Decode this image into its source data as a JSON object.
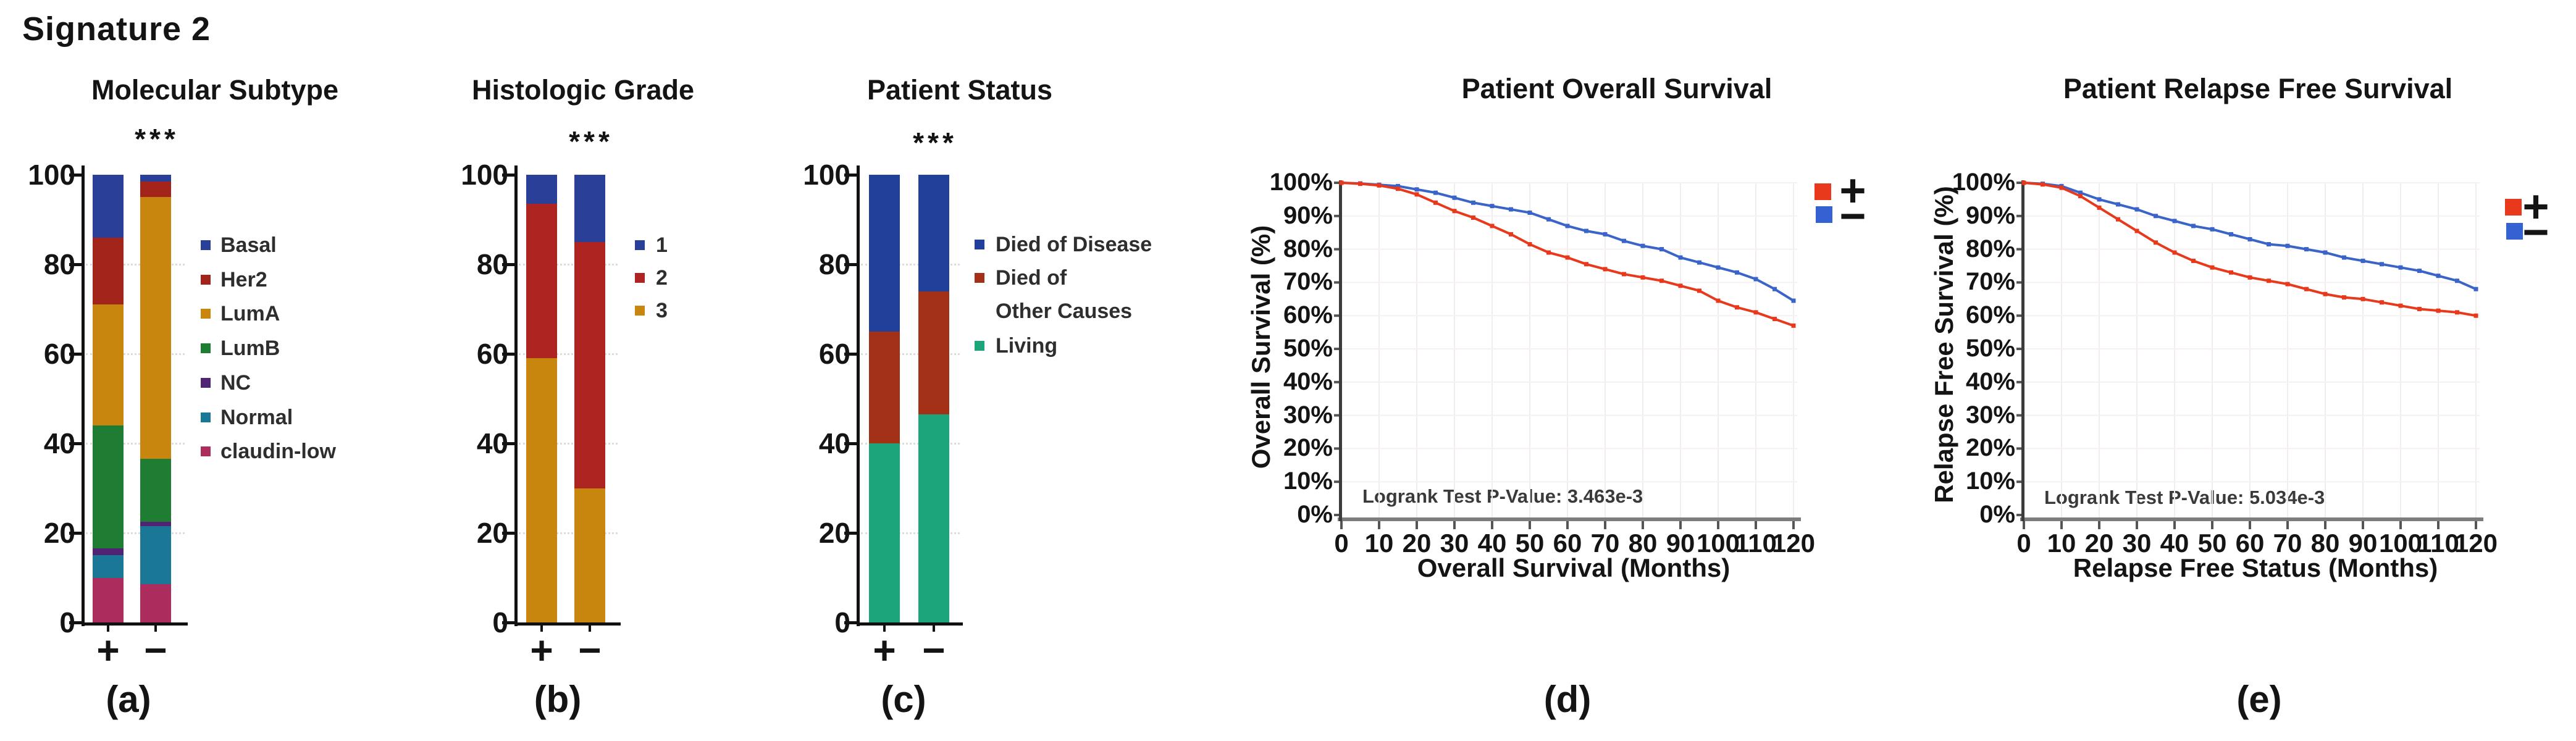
{
  "figure_title": "Signature 2",
  "chart_data": [
    {
      "id": "a",
      "type": "bar",
      "stacked": true,
      "title": "Molecular Subtype",
      "significance": "***",
      "panel_label": "(a)",
      "categories": [
        "+",
        "−"
      ],
      "ylim": [
        0,
        100
      ],
      "y_ticks": [
        100,
        80,
        60,
        40,
        20,
        0
      ],
      "series_bottom_to_top": [
        {
          "name": "claudin-low",
          "color": "#AB2C5D",
          "values": [
            10,
            8.5
          ]
        },
        {
          "name": "Normal",
          "color": "#1A7896",
          "values": [
            5,
            13
          ]
        },
        {
          "name": "NC",
          "color": "#502374",
          "values": [
            1.5,
            1
          ]
        },
        {
          "name": "LumB",
          "color": "#1E7D33",
          "values": [
            27.5,
            14
          ]
        },
        {
          "name": "LumA",
          "color": "#C8860E",
          "values": [
            27,
            58.5
          ]
        },
        {
          "name": "Her2",
          "color": "#A3241B",
          "values": [
            15,
            3.5
          ]
        },
        {
          "name": "Basal",
          "color": "#2A3F97",
          "values": [
            14,
            1.5
          ]
        }
      ],
      "legend": [
        {
          "label": "Basal",
          "color": "#2A3F97"
        },
        {
          "label": "Her2",
          "color": "#A3241B"
        },
        {
          "label": "LumA",
          "color": "#C8860E"
        },
        {
          "label": "LumB",
          "color": "#1E7D33"
        },
        {
          "label": "NC",
          "color": "#502374"
        },
        {
          "label": "Normal",
          "color": "#1A7896"
        },
        {
          "label": "claudin-low",
          "color": "#AB2C5D"
        }
      ]
    },
    {
      "id": "b",
      "type": "bar",
      "stacked": true,
      "title": "Histologic Grade",
      "significance": "***",
      "panel_label": "(b)",
      "categories": [
        "+",
        "−"
      ],
      "ylim": [
        0,
        100
      ],
      "y_ticks": [
        100,
        80,
        60,
        40,
        20,
        0
      ],
      "series_bottom_to_top": [
        {
          "name": "3",
          "color": "#C8860E",
          "values": [
            59,
            30
          ]
        },
        {
          "name": "2",
          "color": "#AE2421",
          "values": [
            34.5,
            55
          ]
        },
        {
          "name": "1",
          "color": "#2A3F97",
          "values": [
            6.5,
            15
          ]
        }
      ],
      "legend": [
        {
          "label": "1",
          "color": "#2A3F97"
        },
        {
          "label": "2",
          "color": "#AE2421"
        },
        {
          "label": "3",
          "color": "#C8860E"
        }
      ]
    },
    {
      "id": "c",
      "type": "bar",
      "stacked": true,
      "title": "Patient Status",
      "significance": "***",
      "panel_label": "(c)",
      "categories": [
        "+",
        "−"
      ],
      "ylim": [
        0,
        100
      ],
      "y_ticks": [
        100,
        80,
        60,
        40,
        20,
        0
      ],
      "series_bottom_to_top": [
        {
          "name": "Living",
          "color": "#1CA57B",
          "values": [
            40,
            46.5
          ]
        },
        {
          "name": "Died of Other Causes",
          "color": "#A23118",
          "values": [
            25,
            27.5
          ]
        },
        {
          "name": "Died of Disease",
          "color": "#21409A",
          "values": [
            35,
            26
          ]
        }
      ],
      "legend": [
        {
          "label": "Died of Disease",
          "color": "#21409A"
        },
        {
          "label": "Died of Other Causes",
          "lines": [
            "Died of",
            "Other Causes"
          ],
          "color": "#A23118"
        },
        {
          "label": "Living",
          "color": "#1CA57B"
        }
      ]
    },
    {
      "id": "d",
      "type": "line",
      "title": "Patient Overall Survival",
      "xlabel": "Overall Survival (Months)",
      "ylabel": "Overall Survival (%)",
      "annotation": "Logrank Test P-Value: 3.463e-3",
      "panel_label": "(d)",
      "xlim": [
        0,
        120
      ],
      "ylim": [
        0,
        100
      ],
      "x_ticks": [
        0,
        10,
        20,
        30,
        40,
        50,
        60,
        70,
        80,
        90,
        100,
        110,
        120
      ],
      "y_tick_labels": [
        "100%",
        "90%",
        "80%",
        "70%",
        "60%",
        "50%",
        "40%",
        "30%",
        "20%",
        "10%",
        "0%"
      ],
      "legend": [
        {
          "label": "+",
          "color": "#E8391D"
        },
        {
          "label": "−",
          "color": "#3462D2"
        }
      ],
      "series": [
        {
          "name": "+",
          "color": "#E8391D",
          "x": [
            0,
            5,
            10,
            15,
            20,
            25,
            30,
            35,
            40,
            45,
            50,
            55,
            60,
            65,
            70,
            75,
            80,
            85,
            90,
            95,
            100,
            105,
            110,
            115,
            120
          ],
          "y": [
            100,
            99.7,
            99.2,
            98.2,
            96.5,
            94,
            91.5,
            89.5,
            87,
            84.5,
            81.5,
            79,
            77.5,
            75.5,
            74,
            72.5,
            71.5,
            70.5,
            69,
            67.5,
            64.5,
            62.5,
            61,
            59,
            57
          ]
        },
        {
          "name": "−",
          "color": "#3A64C8",
          "x": [
            0,
            5,
            10,
            15,
            20,
            25,
            30,
            35,
            40,
            45,
            50,
            55,
            60,
            65,
            70,
            75,
            80,
            85,
            90,
            95,
            100,
            105,
            110,
            115,
            120
          ],
          "y": [
            100,
            99.8,
            99.4,
            99,
            98,
            97,
            95.5,
            94,
            93,
            92,
            91,
            89,
            87,
            85.5,
            84.5,
            82.5,
            81,
            80,
            77.5,
            76,
            74.5,
            73,
            71,
            68,
            64.5
          ]
        }
      ]
    },
    {
      "id": "e",
      "type": "line",
      "title": "Patient Relapse Free Survival",
      "xlabel": "Relapse Free Status (Months)",
      "ylabel": "Relapse Free Survival (%)",
      "annotation": "Logrank Test P-Value: 5.034e-3",
      "panel_label": "(e)",
      "xlim": [
        0,
        120
      ],
      "ylim": [
        0,
        100
      ],
      "x_ticks": [
        0,
        10,
        20,
        30,
        40,
        50,
        60,
        70,
        80,
        90,
        100,
        110,
        120
      ],
      "y_tick_labels": [
        "100%",
        "90%",
        "80%",
        "70%",
        "60%",
        "50%",
        "40%",
        "30%",
        "20%",
        "10%",
        "0%"
      ],
      "legend": [
        {
          "label": "+",
          "color": "#E8391D"
        },
        {
          "label": "−",
          "color": "#3462D2"
        }
      ],
      "series": [
        {
          "name": "+",
          "color": "#E8391D",
          "x": [
            0,
            5,
            10,
            15,
            20,
            25,
            30,
            35,
            40,
            45,
            50,
            55,
            60,
            65,
            70,
            75,
            80,
            85,
            90,
            95,
            100,
            105,
            110,
            115,
            120
          ],
          "y": [
            100,
            99.5,
            98.5,
            96,
            92.5,
            89,
            85.5,
            82,
            79,
            76.5,
            74.5,
            73,
            71.5,
            70.5,
            69.5,
            68,
            66.5,
            65.5,
            65,
            64,
            63,
            62,
            61.5,
            61,
            60
          ]
        },
        {
          "name": "−",
          "color": "#3A64C8",
          "x": [
            0,
            5,
            10,
            15,
            20,
            25,
            30,
            35,
            40,
            45,
            50,
            55,
            60,
            65,
            70,
            75,
            80,
            85,
            90,
            95,
            100,
            105,
            110,
            115,
            120
          ],
          "y": [
            100,
            99.7,
            99,
            97,
            95,
            93.5,
            92,
            90,
            88.5,
            87,
            86,
            84.5,
            83,
            81.5,
            81,
            80,
            79,
            77.5,
            76.5,
            75.5,
            74.5,
            73.5,
            72,
            70.5,
            68
          ]
        }
      ]
    }
  ]
}
